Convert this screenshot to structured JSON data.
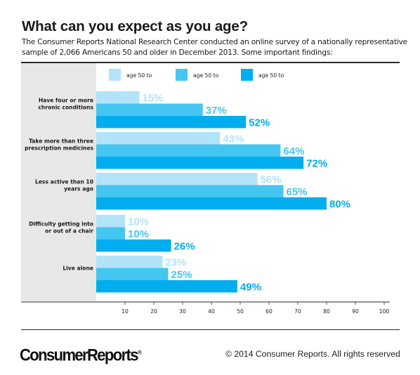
{
  "title": "What can you expect as you age?",
  "subtitle": "The Consumer Reports National Research Center conducted an online survey of a nationally representative sample of 2,066 Americans 50 and older in December 2013. Some important findings:",
  "colors": {
    "series1": "#b3e3f9",
    "series2": "#45c6f1",
    "series3": "#00aeef",
    "panel": "#e8e8e8"
  },
  "chart_data": {
    "type": "bar",
    "orientation": "horizontal",
    "categories": [
      [
        "Have four or more",
        "chronic conditions"
      ],
      [
        "Take more than three",
        "prescription medicines"
      ],
      [
        "Less active than 10",
        "years ago"
      ],
      [
        "Difficulty getting into",
        "or out of a chair"
      ],
      [
        "Live alone"
      ]
    ],
    "series": [
      {
        "name": "age 50 to",
        "values": [
          15,
          43,
          56,
          10,
          23
        ]
      },
      {
        "name": "age 50 to",
        "values": [
          37,
          64,
          65,
          10,
          25
        ]
      },
      {
        "name": "age 50 to",
        "values": [
          52,
          72,
          80,
          26,
          49
        ]
      }
    ],
    "value_suffix": "%",
    "xlim": [
      0,
      100
    ],
    "xticks": [
      10,
      20,
      30,
      40,
      50,
      60,
      70,
      80,
      90,
      100
    ],
    "grid": false,
    "legend_placement": "top"
  },
  "footer": {
    "logo": "ConsumerReports",
    "logo_mark": "®",
    "copyright": "© 2014 Consumer Reports. All rights reserved"
  }
}
